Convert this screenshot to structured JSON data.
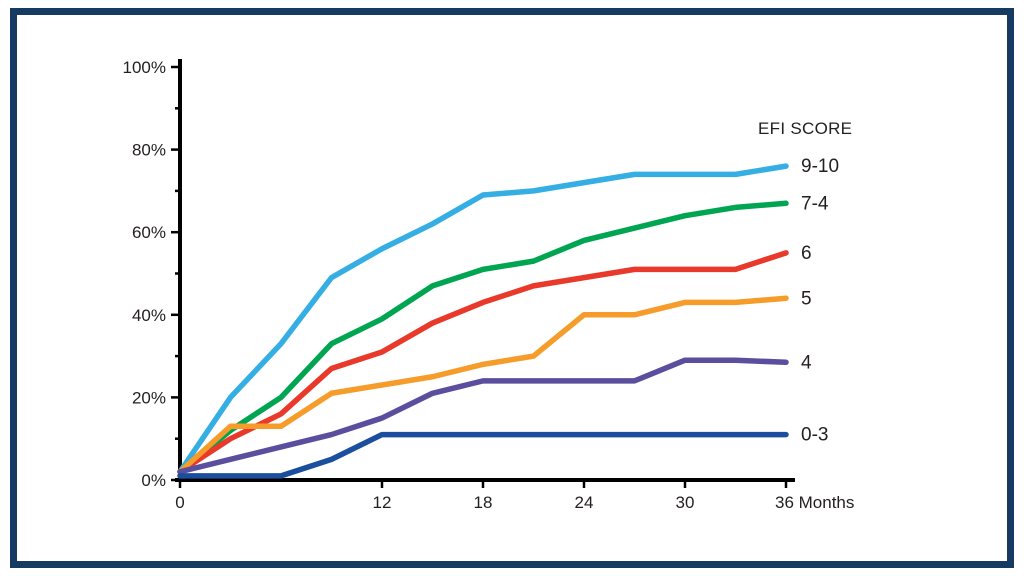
{
  "frame": {
    "border_color": "#173A63",
    "background": "#FFFFFF"
  },
  "chart_data": {
    "type": "line",
    "title": "",
    "xlabel": "Months",
    "ylabel": "%",
    "xlim": [
      0,
      36
    ],
    "ylim": [
      0,
      100
    ],
    "grid": false,
    "legend_title": "EFI SCORE",
    "legend_position": "right of line ends",
    "x": [
      0,
      3,
      6,
      9,
      12,
      15,
      18,
      21,
      24,
      27,
      30,
      33,
      36
    ],
    "y_ticks": [
      {
        "value": 0,
        "label": "0%"
      },
      {
        "value": 20,
        "label": "20%"
      },
      {
        "value": 40,
        "label": "40%"
      },
      {
        "value": 60,
        "label": "60%"
      },
      {
        "value": 80,
        "label": "80%"
      },
      {
        "value": 100,
        "label": "100%"
      }
    ],
    "x_ticks": [
      {
        "value": 0,
        "label": "0"
      },
      {
        "value": 12,
        "label": "12"
      },
      {
        "value": 18,
        "label": "18"
      },
      {
        "value": 24,
        "label": "24"
      },
      {
        "value": 30,
        "label": "30"
      },
      {
        "value": 36,
        "label": "36 Months"
      }
    ],
    "series": [
      {
        "name": "9-10",
        "color": "#35AEE4",
        "values": [
          2,
          20,
          33,
          49,
          56,
          62,
          69,
          70,
          72,
          74,
          74,
          74,
          76
        ]
      },
      {
        "name": "7-4",
        "color": "#00A551",
        "values": [
          2,
          12,
          20,
          33,
          39,
          47,
          51,
          53,
          58,
          61,
          64,
          66,
          67
        ]
      },
      {
        "name": "6",
        "color": "#E8392B",
        "values": [
          2,
          10,
          16,
          27,
          31,
          38,
          43,
          47,
          49,
          51,
          51,
          51,
          55
        ]
      },
      {
        "name": "5",
        "color": "#F59C2A",
        "values": [
          2,
          13,
          13,
          21,
          23,
          25,
          28,
          30,
          40,
          40,
          43,
          43,
          44
        ]
      },
      {
        "name": "4",
        "color": "#5C4E9E",
        "values": [
          2,
          5,
          8,
          11,
          15,
          21,
          24,
          24,
          24,
          24,
          29,
          29,
          28.5
        ]
      },
      {
        "name": "0-3",
        "color": "#1C4E9E",
        "values": [
          1,
          1,
          1,
          5,
          11,
          11,
          11,
          11,
          11,
          11,
          11,
          11,
          11
        ]
      }
    ]
  }
}
